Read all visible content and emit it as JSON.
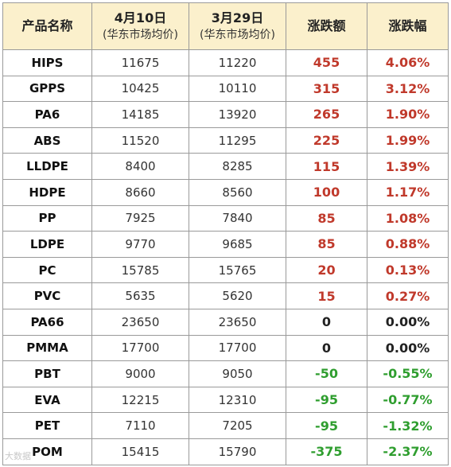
{
  "header": {
    "product": "产品名称",
    "date1": "4月10日",
    "date1_sub": "(华东市场均价)",
    "date2": "3月29日",
    "date2_sub": "(华东市场均价)",
    "change": "涨跌额",
    "change_pct": "涨跌幅"
  },
  "colors": {
    "up": "#c0392b",
    "down": "#2f9e2f",
    "flat": "#222222",
    "header_bg": "#fbf0cc"
  },
  "rows": [
    {
      "product": "HIPS",
      "p1": "11675",
      "p2": "11220",
      "chg": "455",
      "pct": "4.06%",
      "dir": "up"
    },
    {
      "product": "GPPS",
      "p1": "10425",
      "p2": "10110",
      "chg": "315",
      "pct": "3.12%",
      "dir": "up"
    },
    {
      "product": "PA6",
      "p1": "14185",
      "p2": "13920",
      "chg": "265",
      "pct": "1.90%",
      "dir": "up"
    },
    {
      "product": "ABS",
      "p1": "11520",
      "p2": "11295",
      "chg": "225",
      "pct": "1.99%",
      "dir": "up"
    },
    {
      "product": "LLDPE",
      "p1": "8400",
      "p2": "8285",
      "chg": "115",
      "pct": "1.39%",
      "dir": "up"
    },
    {
      "product": "HDPE",
      "p1": "8660",
      "p2": "8560",
      "chg": "100",
      "pct": "1.17%",
      "dir": "up"
    },
    {
      "product": "PP",
      "p1": "7925",
      "p2": "7840",
      "chg": "85",
      "pct": "1.08%",
      "dir": "up"
    },
    {
      "product": "LDPE",
      "p1": "9770",
      "p2": "9685",
      "chg": "85",
      "pct": "0.88%",
      "dir": "up"
    },
    {
      "product": "PC",
      "p1": "15785",
      "p2": "15765",
      "chg": "20",
      "pct": "0.13%",
      "dir": "up"
    },
    {
      "product": "PVC",
      "p1": "5635",
      "p2": "5620",
      "chg": "15",
      "pct": "0.27%",
      "dir": "up"
    },
    {
      "product": "PA66",
      "p1": "23650",
      "p2": "23650",
      "chg": "0",
      "pct": "0.00%",
      "dir": "flat"
    },
    {
      "product": "PMMA",
      "p1": "17700",
      "p2": "17700",
      "chg": "0",
      "pct": "0.00%",
      "dir": "flat"
    },
    {
      "product": "PBT",
      "p1": "9000",
      "p2": "9050",
      "chg": "-50",
      "pct": "-0.55%",
      "dir": "down"
    },
    {
      "product": "EVA",
      "p1": "12215",
      "p2": "12310",
      "chg": "-95",
      "pct": "-0.77%",
      "dir": "down"
    },
    {
      "product": "PET",
      "p1": "7110",
      "p2": "7205",
      "chg": "-95",
      "pct": "-1.32%",
      "dir": "down"
    },
    {
      "product": "POM",
      "p1": "15415",
      "p2": "15790",
      "chg": "-375",
      "pct": "-2.37%",
      "dir": "down"
    }
  ],
  "watermark": "大数据"
}
